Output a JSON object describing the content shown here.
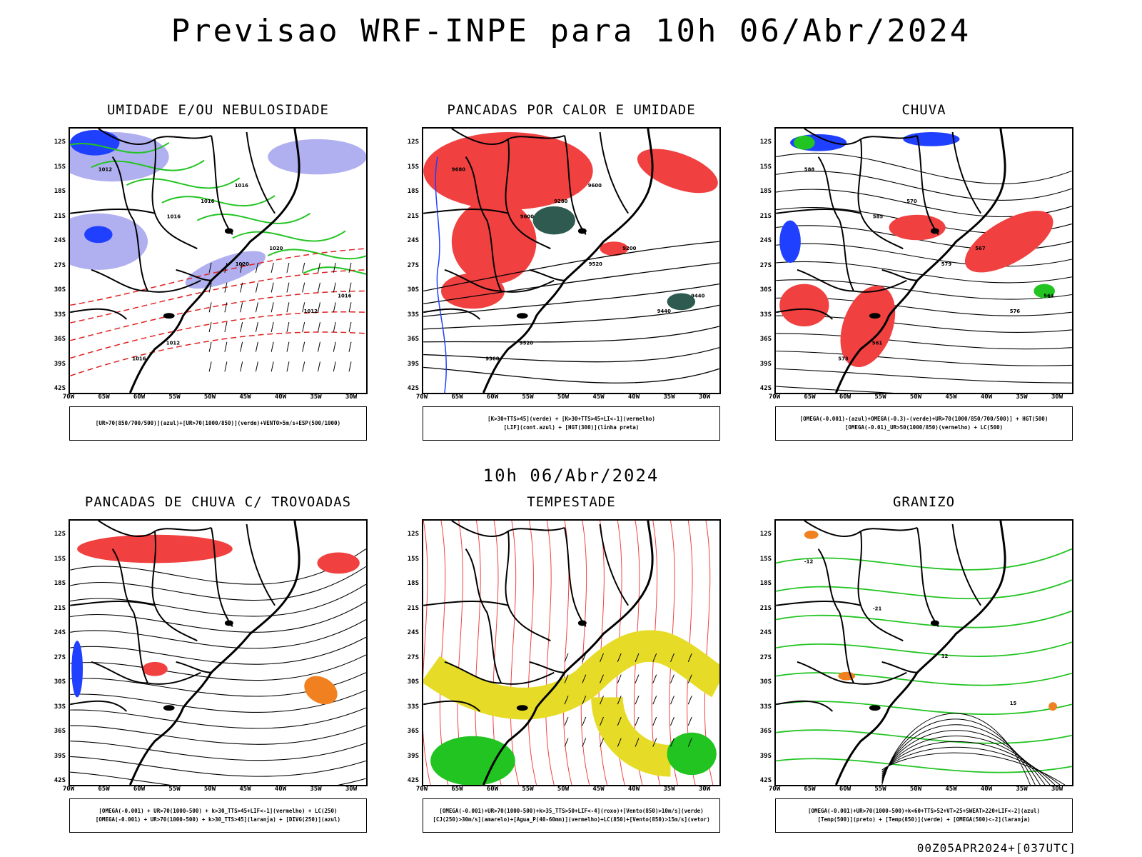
{
  "title": "Previsao WRF-INPE  para 10h 06/Abr/2024",
  "middle_label": "10h 06/Abr/2024",
  "footer": "00Z05APR2024+[037UTC]",
  "lat_labels": [
    "12S",
    "15S",
    "18S",
    "21S",
    "24S",
    "27S",
    "30S",
    "33S",
    "36S",
    "39S",
    "42S"
  ],
  "lon_labels": [
    "70W",
    "65W",
    "60W",
    "55W",
    "50W",
    "45W",
    "40W",
    "35W",
    "30W"
  ],
  "colors": {
    "red": "#f04040",
    "green": "#22c422",
    "blue": "#2040ff",
    "lavender": "#b0b0f0",
    "yellow": "#e6dc28",
    "darkgreen": "#2e5a50",
    "orange": "#f08020"
  },
  "panels": [
    {
      "title": "UMIDADE E/OU NEBULOSIDADE",
      "legend": [
        "[UR>70(850/700/500)](azul)+[UR>70(1000/850)](verde)+VENTO>5m/s+ESP(500/1000)"
      ],
      "contour_labels": [
        "1012",
        "1016",
        "1020",
        "1012",
        "1016",
        "1016",
        "1020",
        "1016",
        "1012",
        "1016"
      ]
    },
    {
      "title": "PANCADAS POR CALOR E UMIDADE",
      "legend": [
        "[K>30+TTS>45](verde) + [K>30+TTS>45+LI<-1](vermelho)",
        "[LIF](cont.azul) + [HGT(300)](linha preta)"
      ],
      "contour_labels": [
        "9680",
        "9600",
        "9520",
        "9440",
        "9360",
        "9280",
        "9200",
        "9440",
        "9520",
        "9600"
      ]
    },
    {
      "title": "CHUVA",
      "legend": [
        "[OMEGA(-0.001)-(azul)+OMEGA(-0.3)-(verde)+UR>70(1000/850/700/500)] + HGT(500)",
        "[OMEGA(-0.01)_UR>50(1000/850)(vermelho) + LC(500)"
      ],
      "contour_labels": [
        "588",
        "585",
        "579",
        "576",
        "573",
        "570",
        "567",
        "564",
        "561"
      ]
    },
    {
      "title": "PANCADAS DE CHUVA C/ TROVOADAS",
      "legend": [
        "[OMEGA(-0.001) + UR>70(1000-500) + k>30_TTS>45+LIF<-1](vermelho) + LC(250)",
        "[OMEGA(-0.001) + UR>70(1000-500) + k>30_TTS>45](laranja) + [DIVG(250)](azul)"
      ],
      "contour_labels": []
    },
    {
      "title": "TEMPESTADE",
      "legend": [
        "[OMEGA(-0.001)+UR>70(1000-500)+k>35_TTS>50+LIF<-4](roxo)+[Vento(850)>10m/s](verde)",
        "[CJ(250)>30m/s](amarelo)+[Agua_P(40-60mm)](vermelho)+LC(850)+[Vento(850)>15m/s](vetor)"
      ],
      "contour_labels": []
    },
    {
      "title": "GRANIZO",
      "legend": [
        "[OMEGA(-0.001)+UR>70(1000-500)+k<60+TTS>52+VT>25+SWEAT>220+LIF<-2](azul)",
        "[Temp(500)](preto) + [Temp(850)](verde) + [OMEGA(500)<-2](laranja)"
      ],
      "contour_labels": [
        "-12",
        "-21",
        "12",
        "15"
      ]
    }
  ]
}
